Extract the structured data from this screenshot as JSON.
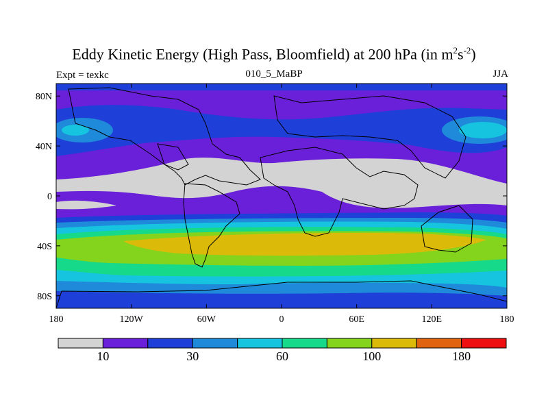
{
  "title": {
    "main": "Eddy Kinetic Energy (High Pass, Bloomfield) at 200 hPa (in m",
    "sup1": "2",
    "mid": "s",
    "sup2": "-2",
    "end": ")"
  },
  "subtitle": "010_5_MaBP",
  "left_label": "Expt = texkc",
  "right_label": "JJA",
  "lat_ticks": [
    "80N",
    "40N",
    "0",
    "40S",
    "80S"
  ],
  "lon_ticks": [
    "180",
    "120W",
    "60W",
    "0",
    "60E",
    "120E",
    "180"
  ],
  "colorbar": {
    "colors": [
      "#d3d3d3",
      "#6a1fd9",
      "#1f3fd9",
      "#1f8ad9",
      "#16c4e0",
      "#17d98a",
      "#84d41e",
      "#dcba0a",
      "#e0640f",
      "#ee1010"
    ],
    "labels": [
      "10",
      "30",
      "60",
      "100",
      "180"
    ]
  }
}
